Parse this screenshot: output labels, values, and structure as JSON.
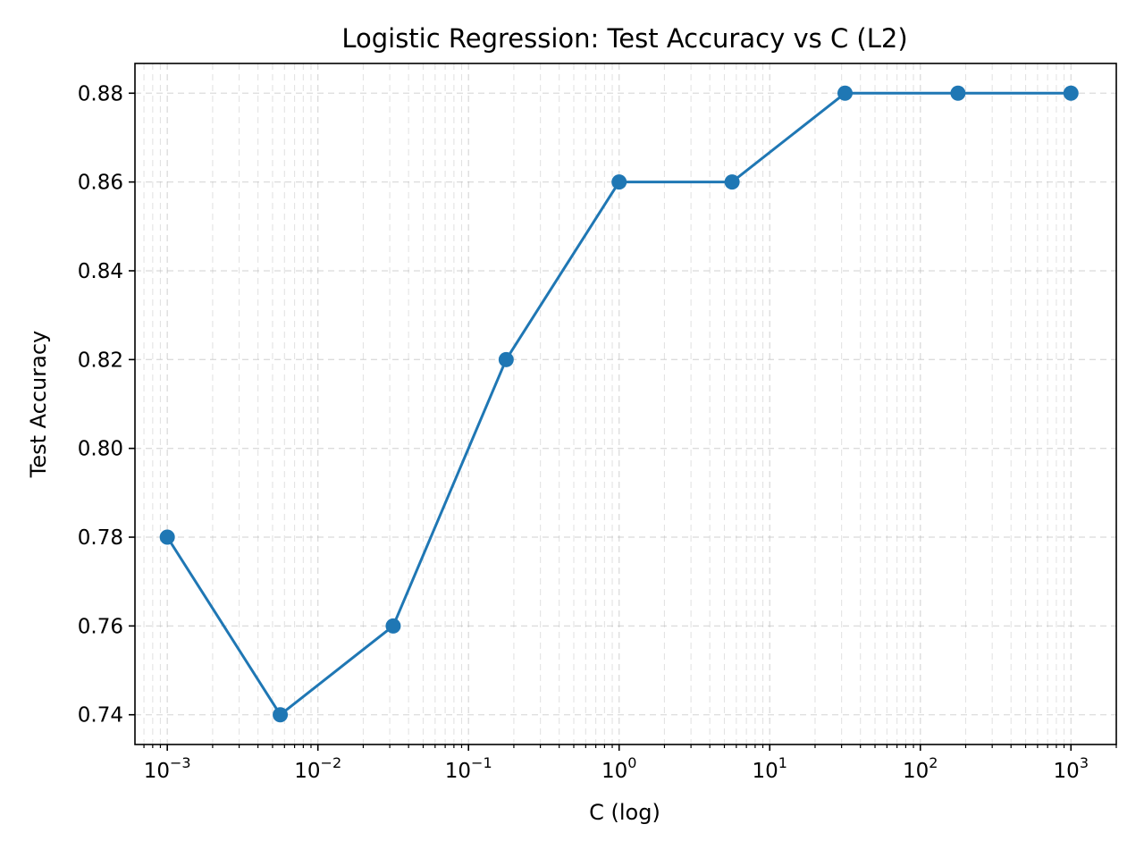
{
  "chart_data": {
    "type": "line",
    "title": "Logistic Regression: Test Accuracy vs C (L2)",
    "xlabel": "C (log)",
    "ylabel": "Test Accuracy",
    "x_scale": "log",
    "xlim": [
      0.00061,
      2000
    ],
    "ylim": [
      0.7333,
      0.8867
    ],
    "x_ticks": [
      {
        "value": 0.001,
        "base": "10",
        "exp": "−3"
      },
      {
        "value": 0.01,
        "base": "10",
        "exp": "−2"
      },
      {
        "value": 0.1,
        "base": "10",
        "exp": "−1"
      },
      {
        "value": 1,
        "base": "10",
        "exp": "0"
      },
      {
        "value": 10,
        "base": "10",
        "exp": "1"
      },
      {
        "value": 100,
        "base": "10",
        "exp": "2"
      },
      {
        "value": 1000,
        "base": "10",
        "exp": "3"
      }
    ],
    "y_ticks": [
      {
        "value": 0.74,
        "label": "0.74"
      },
      {
        "value": 0.76,
        "label": "0.76"
      },
      {
        "value": 0.78,
        "label": "0.78"
      },
      {
        "value": 0.8,
        "label": "0.80"
      },
      {
        "value": 0.82,
        "label": "0.82"
      },
      {
        "value": 0.84,
        "label": "0.84"
      },
      {
        "value": 0.86,
        "label": "0.86"
      },
      {
        "value": 0.88,
        "label": "0.88"
      }
    ],
    "grid": true,
    "minor_grid": true,
    "series": [
      {
        "color": "#1f77b4",
        "marker": "circle",
        "x": [
          0.001,
          0.005623,
          0.031623,
          0.177828,
          1.0,
          5.623413,
          31.622777,
          177.827941,
          1000.0
        ],
        "y": [
          0.78,
          0.74,
          0.76,
          0.82,
          0.86,
          0.86,
          0.88,
          0.88,
          0.88
        ]
      }
    ]
  }
}
